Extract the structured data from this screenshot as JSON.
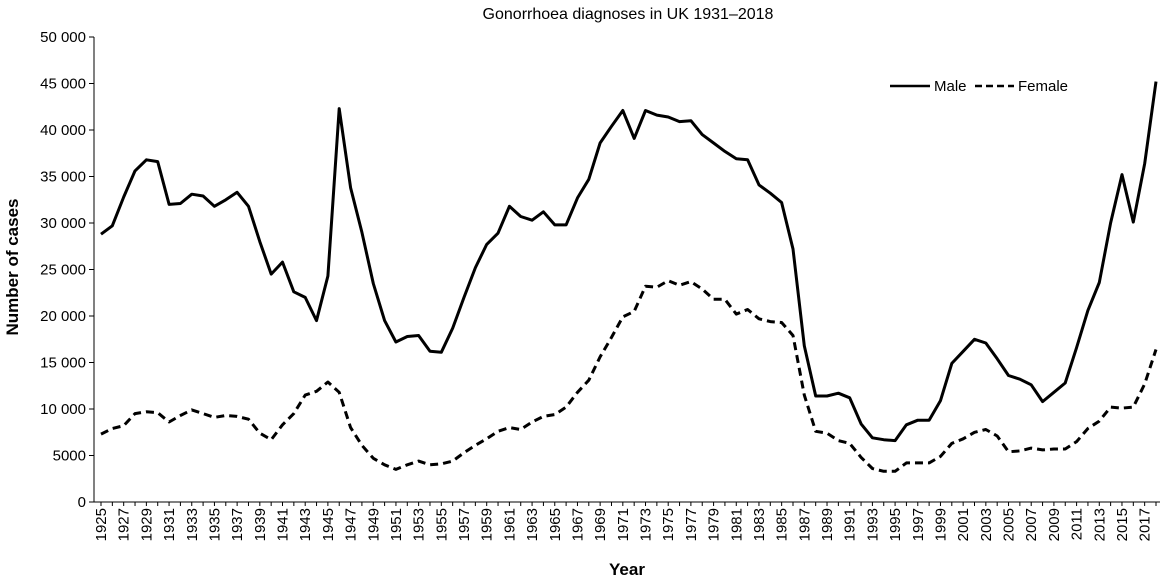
{
  "chart_data": {
    "type": "line",
    "title": "Gonorrhoea diagnoses in UK 1931–2018",
    "xlabel": "Year",
    "ylabel": "Number of cases",
    "ylim": [
      0,
      50000
    ],
    "yticks": [
      0,
      5000,
      10000,
      15000,
      20000,
      25000,
      30000,
      35000,
      40000,
      45000,
      50000
    ],
    "ytick_labels": [
      "0",
      "5000",
      "10 000",
      "15 000",
      "20 000",
      "25 000",
      "30 000",
      "35 000",
      "40 000",
      "45 000",
      "50 000"
    ],
    "xlim": [
      1925,
      2018
    ],
    "xtick_labels": [
      "1925",
      "1927",
      "1929",
      "1931",
      "1933",
      "1935",
      "1937",
      "1939",
      "1941",
      "1943",
      "1945",
      "1947",
      "1949",
      "1951",
      "1953",
      "1955",
      "1957",
      "1959",
      "1961",
      "1963",
      "1965",
      "1967",
      "1969",
      "1971",
      "1973",
      "1975",
      "1977",
      "1979",
      "1981",
      "1983",
      "1985",
      "1987",
      "1989",
      "1991",
      "1993",
      "1995",
      "1997",
      "1999",
      "2001",
      "2003",
      "2005",
      "2007",
      "2009",
      "2011",
      "2013",
      "2015",
      "2017"
    ],
    "grid": false,
    "legend_position": "top-right",
    "x": [
      1925,
      1926,
      1927,
      1928,
      1929,
      1930,
      1931,
      1932,
      1933,
      1934,
      1935,
      1936,
      1937,
      1938,
      1939,
      1940,
      1941,
      1942,
      1943,
      1944,
      1945,
      1946,
      1947,
      1948,
      1949,
      1950,
      1951,
      1952,
      1953,
      1954,
      1955,
      1956,
      1957,
      1958,
      1959,
      1960,
      1961,
      1962,
      1963,
      1964,
      1965,
      1966,
      1967,
      1968,
      1969,
      1970,
      1971,
      1972,
      1973,
      1974,
      1975,
      1976,
      1977,
      1978,
      1979,
      1980,
      1981,
      1982,
      1983,
      1984,
      1985,
      1986,
      1987,
      1988,
      1989,
      1990,
      1991,
      1992,
      1993,
      1994,
      1995,
      1996,
      1997,
      1998,
      1999,
      2000,
      2001,
      2002,
      2003,
      2004,
      2005,
      2006,
      2007,
      2008,
      2009,
      2010,
      2011,
      2012,
      2013,
      2014,
      2015,
      2016,
      2017,
      2018
    ],
    "series": [
      {
        "name": "Male",
        "style": "solid",
        "values": [
          28800,
          29700,
          32800,
          35600,
          36800,
          36600,
          32000,
          32100,
          33100,
          32900,
          31800,
          32500,
          33300,
          31800,
          28000,
          24500,
          25800,
          22600,
          22000,
          19500,
          24300,
          42300,
          33800,
          29000,
          23500,
          19500,
          17200,
          17800,
          17900,
          16200,
          16100,
          18700,
          22000,
          25200,
          27700,
          28900,
          31800,
          30700,
          30300,
          31200,
          29800,
          29800,
          32700,
          34700,
          38600,
          40400,
          42100,
          39100,
          42100,
          41600,
          41400,
          40900,
          41000,
          39500,
          38600,
          37700,
          36900,
          36800,
          34100,
          33200,
          32200,
          27200,
          16800,
          11400,
          11400,
          11700,
          11200,
          8400,
          6900,
          6700,
          6600,
          8300,
          8800,
          8800,
          10900,
          14900,
          16200,
          17500,
          17100,
          15400,
          13600,
          13200,
          12600,
          10800,
          11800,
          12800,
          16600,
          20600,
          23600,
          30000,
          35200,
          30100,
          36400,
          45200
        ]
      },
      {
        "name": "Female",
        "style": "dashed",
        "values": [
          7300,
          7900,
          8200,
          9500,
          9700,
          9600,
          8600,
          9300,
          9900,
          9500,
          9100,
          9300,
          9200,
          8900,
          7400,
          6700,
          8300,
          9500,
          11500,
          11900,
          12900,
          11800,
          8000,
          6100,
          4700,
          4000,
          3500,
          4000,
          4400,
          4000,
          4100,
          4400,
          5300,
          6100,
          6800,
          7600,
          8000,
          7800,
          8600,
          9200,
          9400,
          10200,
          11800,
          13100,
          15600,
          17700,
          19900,
          20500,
          23200,
          23100,
          23800,
          23300,
          23700,
          22900,
          21800,
          21800,
          20200,
          20700,
          19700,
          19400,
          19300,
          17900,
          11500,
          7600,
          7400,
          6600,
          6300,
          4800,
          3600,
          3300,
          3300,
          4200,
          4200,
          4200,
          4900,
          6300,
          6800,
          7500,
          7800,
          7100,
          5400,
          5500,
          5800,
          5600,
          5700,
          5700,
          6500,
          7900,
          8700,
          10200,
          10100,
          10200,
          12700,
          16400
        ]
      }
    ]
  }
}
